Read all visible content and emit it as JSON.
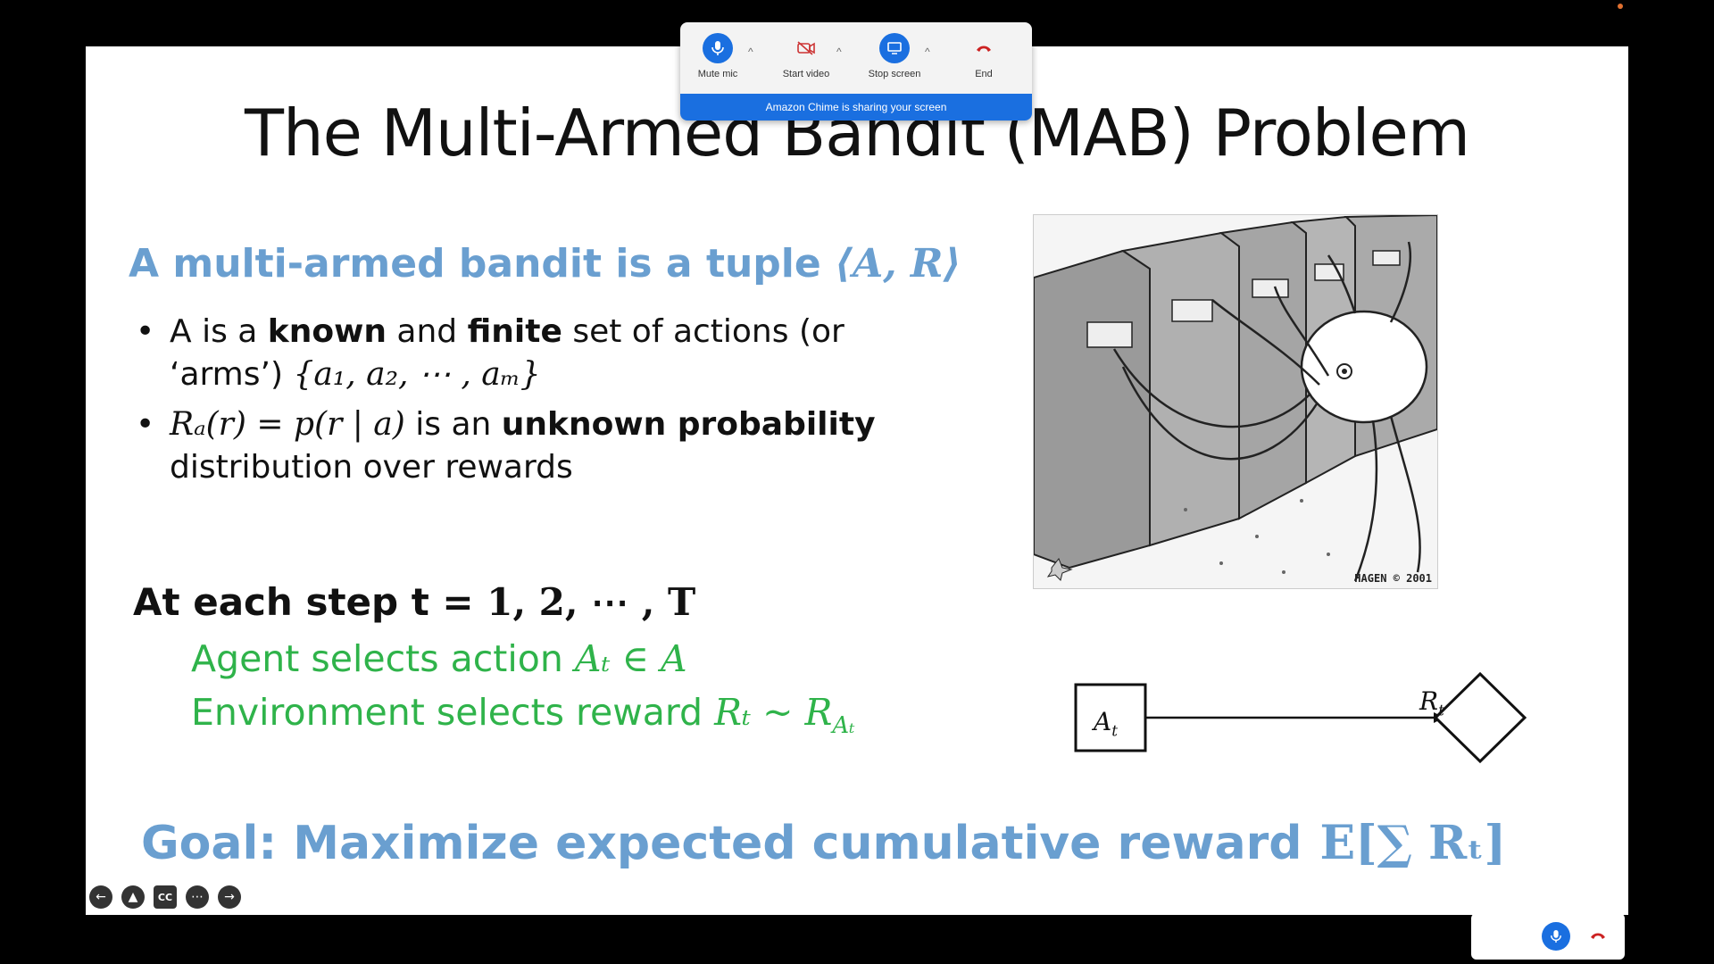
{
  "slide": {
    "title": "The Multi-Armed Bandit (MAB) Problem",
    "heading_text": "A multi-armed bandit is a tuple ",
    "heading_math": "⟨A, R⟩",
    "bullet1": {
      "pre": "A is a ",
      "bold1": "known",
      "mid": " and ",
      "bold2": "finite",
      "post": " set of actions (or ‘arms’) ",
      "math": "{a₁, a₂, ⋯ , aₘ}"
    },
    "bullet2": {
      "math": "Rₐ(r) = p(r | a)",
      "pre": " is an ",
      "bold": "unknown probability",
      "post": " distribution over rewards"
    },
    "step_text": "At each step t = ",
    "step_math": "1, 2, ⋯ , T",
    "agent_line": "Agent selects action ",
    "agent_math": "Aₜ ∈ A",
    "env_line": "Environment selects reward ",
    "env_math": "Rₜ ~ R",
    "goal_text": "Goal: Maximize expected cumulative reward",
    "goal_formula": "E[∑ Rₜ]",
    "cartoon_signature": "HAGEN © 2001",
    "diagram": {
      "action_label": "A",
      "reward_label": "R",
      "subscript": "t"
    }
  },
  "toolbar": {
    "mute_label": "Mute mic",
    "video_label": "Start video",
    "screen_label": "Stop screen",
    "end_label": "End",
    "banner": "Amazon Chime is sharing your screen"
  },
  "colors": {
    "accent_blue": "#6a9fd0",
    "green": "#2fb34a",
    "chime_blue": "#1a6fe0",
    "end_red": "#cc2222"
  }
}
